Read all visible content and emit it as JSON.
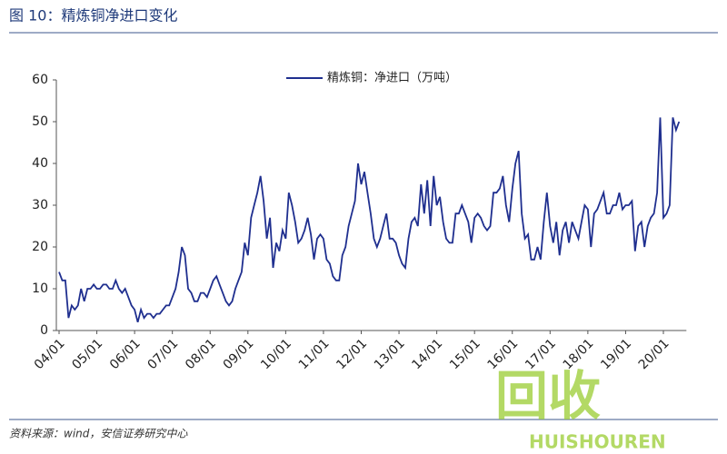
{
  "chart_data": {
    "type": "line",
    "title": "图 10：精炼铜净进口变化",
    "source": "资料来源：wind，安信证券研究中心",
    "watermark": {
      "text": "回收",
      "subtext": "HUISHOUREN"
    },
    "categories": [
      "04/01",
      null,
      null,
      null,
      null,
      null,
      null,
      null,
      null,
      null,
      null,
      null,
      "05/01",
      null,
      null,
      null,
      null,
      null,
      null,
      null,
      null,
      null,
      null,
      null,
      "06/01",
      null,
      null,
      null,
      null,
      null,
      null,
      null,
      null,
      null,
      null,
      null,
      "07/01",
      null,
      null,
      null,
      null,
      null,
      null,
      null,
      null,
      null,
      null,
      null,
      "08/01",
      null,
      null,
      null,
      null,
      null,
      null,
      null,
      null,
      null,
      null,
      null,
      "09/01",
      null,
      null,
      null,
      null,
      null,
      null,
      null,
      null,
      null,
      null,
      null,
      "10/01",
      null,
      null,
      null,
      null,
      null,
      null,
      null,
      null,
      null,
      null,
      null,
      "11/01",
      null,
      null,
      null,
      null,
      null,
      null,
      null,
      null,
      null,
      null,
      null,
      "12/01",
      null,
      null,
      null,
      null,
      null,
      null,
      null,
      null,
      null,
      null,
      null,
      "13/01",
      null,
      null,
      null,
      null,
      null,
      null,
      null,
      null,
      null,
      null,
      null,
      "14/01",
      null,
      null,
      null,
      null,
      null,
      null,
      null,
      null,
      null,
      null,
      null,
      "15/01",
      null,
      null,
      null,
      null,
      null,
      null,
      null,
      null,
      null,
      null,
      null,
      "16/01",
      null,
      null,
      null,
      null,
      null,
      null,
      null,
      null,
      null,
      null,
      null,
      "17/01",
      null,
      null,
      null,
      null,
      null,
      null,
      null,
      null,
      null,
      null,
      null,
      "18/01",
      null,
      null,
      null,
      null,
      null,
      null,
      null,
      null,
      null,
      null,
      null,
      "19/01",
      null,
      null,
      null,
      null,
      null,
      null,
      null,
      null,
      null,
      null,
      null,
      "20/01",
      null,
      null,
      null,
      null,
      null
    ],
    "series": [
      {
        "name": "精炼铜：净进口（万吨）",
        "color": "#1f2f8f",
        "values": [
          14,
          12,
          12,
          3,
          6,
          5,
          6,
          10,
          7,
          10,
          10,
          11,
          10,
          10,
          11,
          11,
          10,
          10,
          12,
          10,
          9,
          10,
          8,
          6,
          5,
          2,
          5,
          3,
          4,
          4,
          3,
          4,
          4,
          5,
          6,
          6,
          8,
          10,
          14,
          20,
          18,
          10,
          9,
          7,
          7,
          9,
          9,
          8,
          10,
          12,
          13,
          11,
          9,
          7,
          6,
          7,
          10,
          12,
          14,
          21,
          18,
          27,
          30,
          33,
          37,
          31,
          22,
          27,
          15,
          21,
          19,
          24,
          22,
          33,
          30,
          26,
          21,
          22,
          24,
          27,
          23,
          17,
          22,
          23,
          22,
          17,
          16,
          13,
          12,
          12,
          18,
          20,
          25,
          28,
          31,
          40,
          35,
          38,
          33,
          28,
          22,
          20,
          22,
          25,
          28,
          22,
          22,
          21,
          18,
          16,
          15,
          22,
          26,
          27,
          25,
          35,
          28,
          36,
          25,
          37,
          30,
          32,
          26,
          22,
          21,
          21,
          28,
          28,
          30,
          28,
          26,
          21,
          27,
          28,
          27,
          25,
          24,
          25,
          33,
          33,
          34,
          37,
          30,
          26,
          34,
          40,
          43,
          28,
          22,
          23,
          17,
          17,
          20,
          17,
          26,
          33,
          25,
          21,
          26,
          18,
          24,
          26,
          21,
          26,
          24,
          22,
          26,
          30,
          29,
          20,
          28,
          29,
          31,
          33,
          28,
          28,
          30,
          30,
          33,
          29,
          30,
          30,
          31,
          19,
          25,
          26,
          20,
          25,
          27,
          28,
          33,
          51,
          27,
          28,
          30,
          51,
          48,
          50
        ]
      }
    ],
    "ylim": [
      0,
      60
    ],
    "yticks": [
      0,
      10,
      20,
      30,
      40,
      50,
      60
    ],
    "grid": false,
    "legend": "top"
  }
}
